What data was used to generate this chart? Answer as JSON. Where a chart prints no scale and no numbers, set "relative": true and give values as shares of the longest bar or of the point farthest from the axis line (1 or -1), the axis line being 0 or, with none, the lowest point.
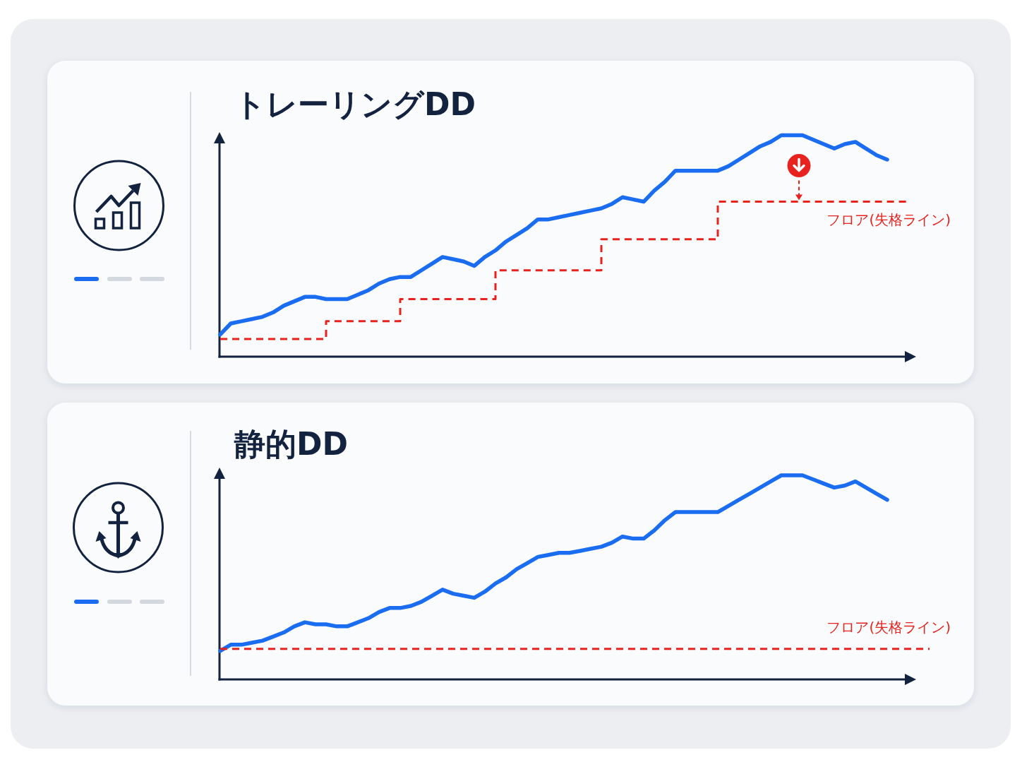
{
  "chart_data": [
    {
      "type": "line",
      "title": "トレーリングDD",
      "relative": true,
      "categories": [
        null,
        null,
        null,
        null,
        null,
        null,
        null,
        null,
        null,
        null,
        null,
        null,
        null,
        null,
        null,
        null,
        null,
        null,
        null,
        null,
        null,
        null,
        null,
        null,
        null,
        null,
        null,
        null,
        null,
        null,
        null,
        null,
        null,
        null,
        null,
        null,
        null,
        null,
        null,
        null,
        null,
        null,
        null,
        null,
        null,
        null,
        null,
        null,
        null,
        null,
        null,
        null,
        null,
        null,
        null,
        null,
        null,
        null,
        null,
        null,
        null,
        null,
        null,
        null,
        null,
        null,
        null,
        null
      ],
      "series": [
        {
          "color": "#1a6cf0",
          "line_style": "solid",
          "values": [
            0.1,
            0.15,
            0.16,
            0.17,
            0.18,
            0.2,
            0.23,
            0.25,
            0.27,
            0.27,
            0.26,
            0.26,
            0.26,
            0.28,
            0.3,
            0.33,
            0.35,
            0.36,
            0.36,
            0.39,
            0.42,
            0.45,
            0.44,
            0.43,
            0.41,
            0.45,
            0.48,
            0.52,
            0.55,
            0.58,
            0.62,
            0.62,
            0.63,
            0.64,
            0.65,
            0.66,
            0.67,
            0.69,
            0.72,
            0.71,
            0.7,
            0.75,
            0.79,
            0.84,
            0.84,
            0.84,
            0.84,
            0.84,
            0.86,
            0.89,
            0.92,
            0.95,
            0.97,
            1,
            1,
            1,
            0.98,
            0.96,
            0.94,
            0.96,
            0.97,
            0.94,
            0.91,
            0.89,
            null,
            null,
            null,
            null
          ]
        },
        {
          "type": "step",
          "name": "フロア(失格ライン)",
          "color": "#e8231f",
          "line_style": "dashed",
          "values": [
            0.08,
            0.08,
            0.08,
            0.08,
            0.08,
            0.08,
            0.08,
            0.08,
            0.08,
            0.08,
            0.16,
            0.16,
            0.16,
            0.16,
            0.16,
            0.16,
            0.16,
            0.26,
            0.26,
            0.26,
            0.26,
            0.26,
            0.26,
            0.26,
            0.26,
            0.26,
            0.39,
            0.39,
            0.39,
            0.39,
            0.39,
            0.39,
            0.39,
            0.39,
            0.39,
            0.39,
            0.53,
            0.53,
            0.53,
            0.53,
            0.53,
            0.53,
            0.53,
            0.53,
            0.53,
            0.53,
            0.53,
            0.7,
            0.7,
            0.7,
            0.7,
            0.7,
            0.7,
            0.7,
            0.7,
            0.7,
            0.7,
            0.7,
            0.7,
            0.7,
            0.7,
            0.7,
            0.7,
            0.7,
            0.7,
            0.7,
            null,
            null
          ]
        }
      ]
    },
    {
      "type": "line",
      "title": "静的DD",
      "relative": true,
      "categories": [
        null,
        null,
        null,
        null,
        null,
        null,
        null,
        null,
        null,
        null,
        null,
        null,
        null,
        null,
        null,
        null,
        null,
        null,
        null,
        null,
        null,
        null,
        null,
        null,
        null,
        null,
        null,
        null,
        null,
        null,
        null,
        null,
        null,
        null,
        null,
        null,
        null,
        null,
        null,
        null,
        null,
        null,
        null,
        null,
        null,
        null,
        null,
        null,
        null,
        null,
        null,
        null,
        null,
        null,
        null,
        null,
        null,
        null,
        null,
        null,
        null,
        null,
        null,
        null,
        null,
        null,
        null,
        null
      ],
      "series": [
        {
          "color": "#1a6cf0",
          "line_style": "solid",
          "values": [
            0.14,
            0.17,
            0.17,
            0.18,
            0.19,
            0.21,
            0.23,
            0.26,
            0.28,
            0.27,
            0.27,
            0.26,
            0.26,
            0.28,
            0.3,
            0.33,
            0.35,
            0.35,
            0.36,
            0.38,
            0.41,
            0.44,
            0.42,
            0.41,
            0.4,
            0.43,
            0.47,
            0.5,
            0.54,
            0.57,
            0.6,
            0.61,
            0.62,
            0.62,
            0.63,
            0.64,
            0.65,
            0.67,
            0.7,
            0.69,
            0.69,
            0.73,
            0.78,
            0.82,
            0.82,
            0.82,
            0.82,
            0.82,
            0.85,
            0.88,
            0.91,
            0.94,
            0.97,
            1,
            1,
            1,
            0.98,
            0.96,
            0.94,
            0.95,
            0.97,
            0.94,
            0.91,
            0.88,
            null,
            null,
            null,
            null
          ]
        },
        {
          "name": "フロア(失格ライン)",
          "color": "#e8231f",
          "line_style": "dashed",
          "values": [
            0.15,
            0.15,
            0.15,
            0.15,
            0.15,
            0.15,
            0.15,
            0.15,
            0.15,
            0.15,
            0.15,
            0.15,
            0.15,
            0.15,
            0.15,
            0.15,
            0.15,
            0.15,
            0.15,
            0.15,
            0.15,
            0.15,
            0.15,
            0.15,
            0.15,
            0.15,
            0.15,
            0.15,
            0.15,
            0.15,
            0.15,
            0.15,
            0.15,
            0.15,
            0.15,
            0.15,
            0.15,
            0.15,
            0.15,
            0.15,
            0.15,
            0.15,
            0.15,
            0.15,
            0.15,
            0.15,
            0.15,
            0.15,
            0.15,
            0.15,
            0.15,
            0.15,
            0.15,
            0.15,
            0.15,
            0.15,
            0.15,
            0.15,
            0.15,
            0.15,
            0.15,
            0.15,
            0.15,
            0.15,
            0.15,
            0.15,
            0.15,
            0.15
          ]
        }
      ]
    }
  ]
}
